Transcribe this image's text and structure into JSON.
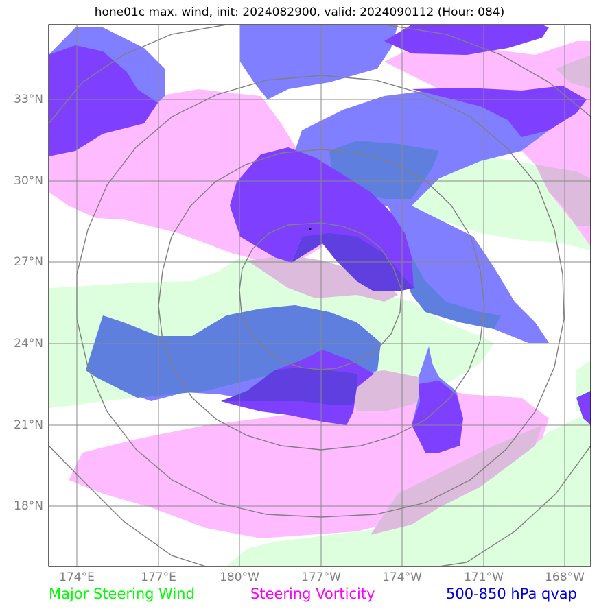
{
  "title": "hone01c max. wind, init: 2024082900, valid: 2024090112 (Hour: 084)",
  "lat_labels": [
    "33°N",
    "30°N",
    "27°N",
    "24°N",
    "21°N",
    "18°N"
  ],
  "lon_labels": [
    "174°E",
    "177°E",
    "180°W",
    "177°W",
    "174°W",
    "171°W",
    "168°W"
  ],
  "legend": {
    "wind": "Major Steering Wind",
    "vorticity": "Steering Vorticity",
    "qvap": "500-850 hPa qvap"
  },
  "colors": {
    "wind": "#00ff00",
    "vorticity": "#ff00ff",
    "qvap": "#0000dd",
    "wind_fill": "#ddffdd",
    "vorticity_fill": "#ffbbff",
    "qvap_fill": "#7f7fff",
    "qvap_dark": "#7f3fff",
    "grid": "#888888",
    "range_rings": "#808080"
  },
  "map": {
    "lat_range": [
      15.8,
      35.6
    ],
    "lon_range_deg_east": [
      173.0,
      193.0
    ],
    "storm_center": {
      "lat": 28.2,
      "lon_deg_east": 182.7
    }
  }
}
